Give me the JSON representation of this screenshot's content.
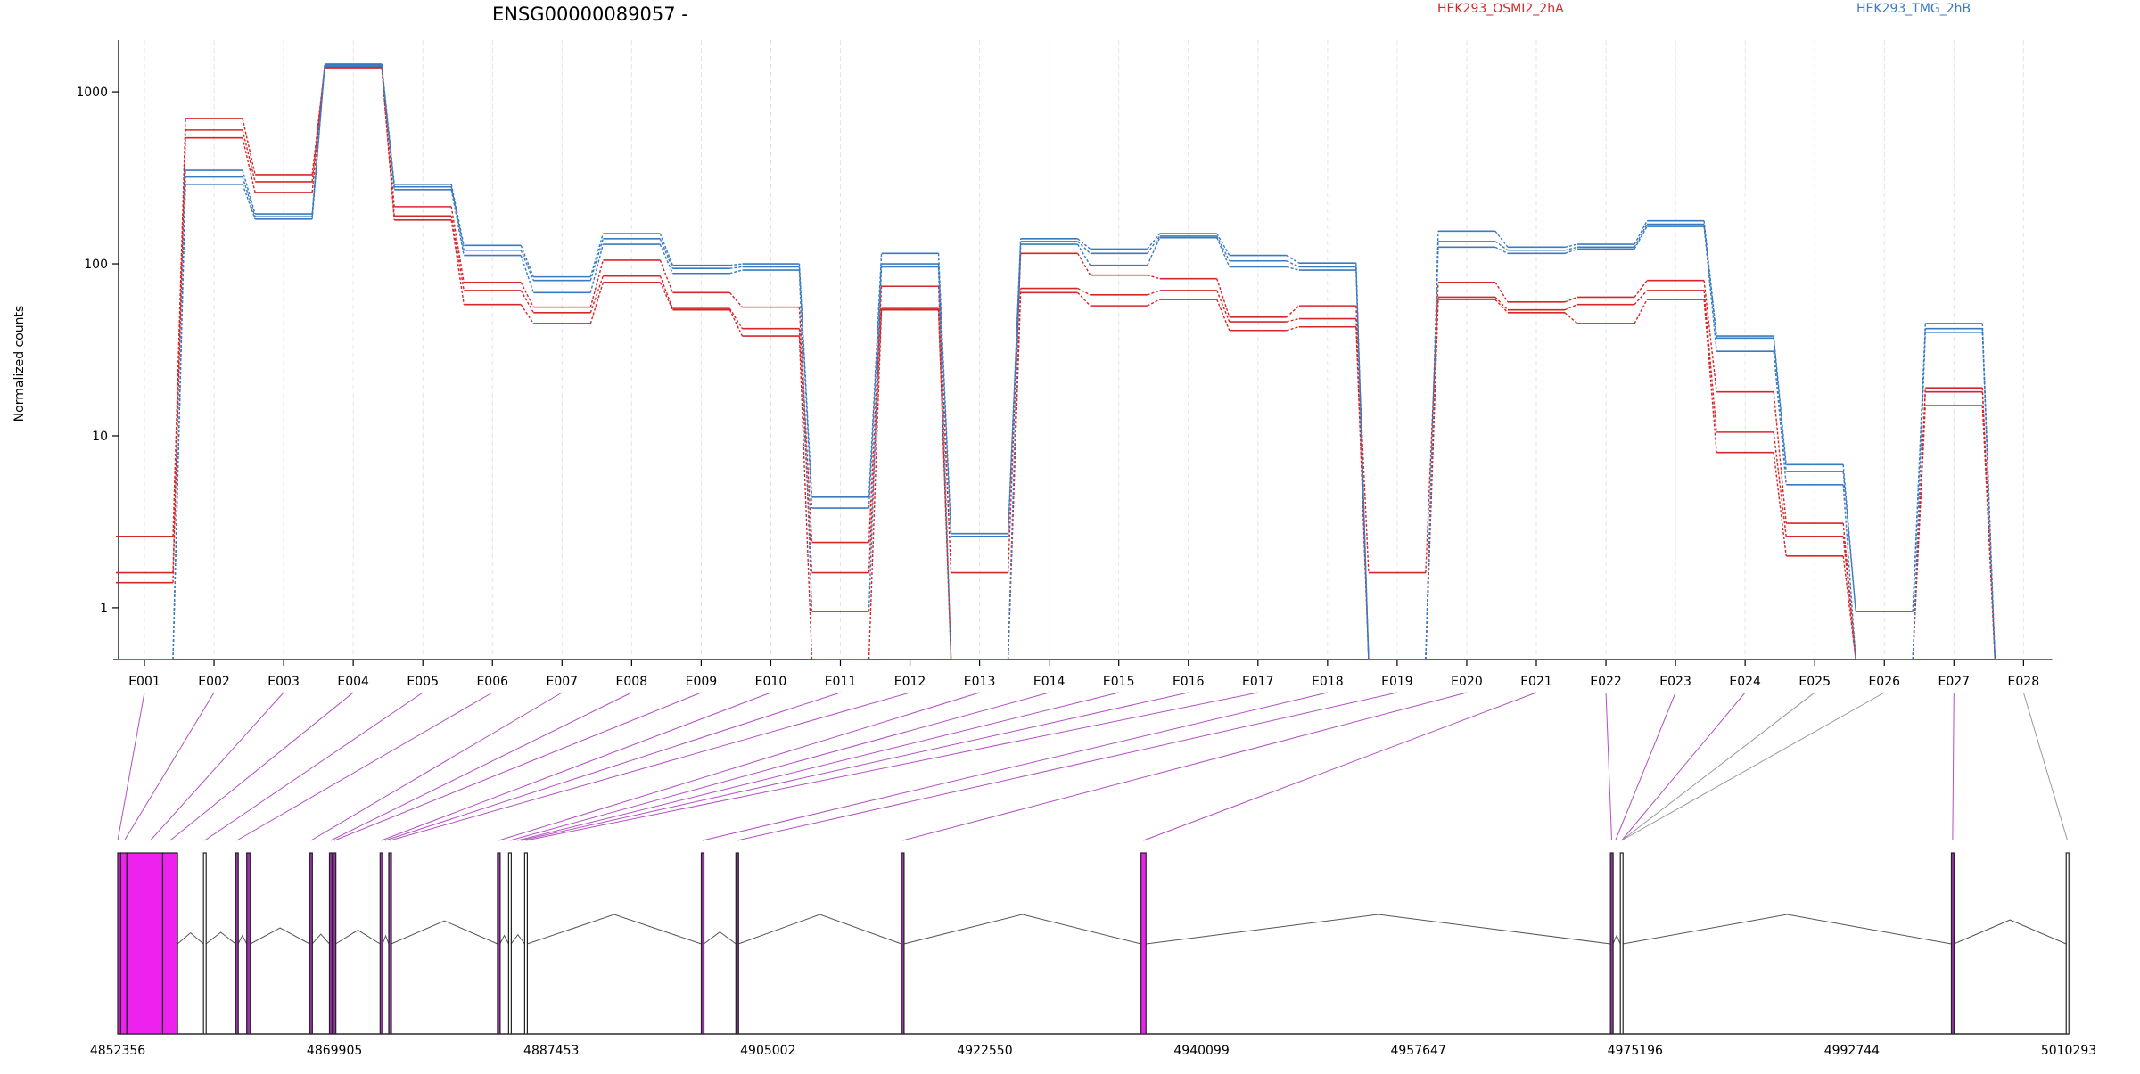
{
  "title": "ENSG00000089057 -",
  "legend": [
    {
      "label": "HEK293_OSMI2_2hA",
      "color": "#d62728"
    },
    {
      "label": "HEK293_TMG_2hB",
      "color": "#3a7bbf"
    }
  ],
  "chart_data": {
    "type": "line",
    "ylabel": "Normalized counts",
    "yscale": "log",
    "ylim": [
      0.5,
      2000
    ],
    "yticks": [
      {
        "value": 1,
        "label": "1"
      },
      {
        "value": 10,
        "label": "10"
      },
      {
        "value": 100,
        "label": "100"
      },
      {
        "value": 1000,
        "label": "1000"
      }
    ],
    "categories": [
      "E001",
      "E002",
      "E003",
      "E004",
      "E005",
      "E006",
      "E007",
      "E008",
      "E009",
      "E010",
      "E011",
      "E012",
      "E013",
      "E014",
      "E015",
      "E016",
      "E017",
      "E018",
      "E019",
      "E020",
      "E021",
      "E022",
      "E023",
      "E024",
      "E025",
      "E026",
      "E027",
      "E028"
    ],
    "series": [
      {
        "group": 0,
        "values": [
          2.6,
          700,
          330,
          1400,
          215,
          78,
          56,
          105,
          68,
          56,
          2.4,
          74,
          1.6,
          115,
          86,
          82,
          49,
          57,
          1.6,
          78,
          60,
          64,
          80,
          18,
          3.1,
          0.5,
          19,
          0.5
        ]
      },
      {
        "group": 0,
        "values": [
          1.6,
          600,
          300,
          1400,
          190,
          70,
          52,
          85,
          55,
          42,
          1.6,
          55,
          0.5,
          72,
          66,
          70,
          46,
          48,
          0.5,
          64,
          54,
          58,
          70,
          10.5,
          2.6,
          0.5,
          18,
          0.5
        ]
      },
      {
        "group": 0,
        "values": [
          1.4,
          540,
          260,
          1380,
          180,
          58,
          45,
          78,
          54,
          38,
          0.5,
          54,
          0.5,
          68,
          57,
          62,
          41,
          43,
          0.5,
          62,
          52,
          45,
          62,
          8.0,
          2.0,
          0.5,
          15,
          0.5
        ]
      },
      {
        "group": 1,
        "values": [
          0.5,
          350,
          195,
          1450,
          290,
          128,
          84,
          150,
          98,
          100,
          4.4,
          115,
          2.7,
          140,
          122,
          150,
          112,
          101,
          0.5,
          155,
          125,
          130,
          178,
          38,
          6.8,
          0.95,
          45,
          0.5
        ]
      },
      {
        "group": 1,
        "values": [
          0.5,
          320,
          188,
          1430,
          280,
          120,
          80,
          140,
          94,
          96,
          3.8,
          100,
          2.6,
          135,
          115,
          145,
          104,
          96,
          0.5,
          135,
          120,
          125,
          170,
          37,
          6.2,
          0.95,
          42,
          0.5
        ]
      },
      {
        "group": 1,
        "values": [
          0.5,
          290,
          182,
          1410,
          270,
          112,
          68,
          130,
          88,
          92,
          0.95,
          96,
          0.5,
          130,
          98,
          142,
          96,
          92,
          0.5,
          125,
          115,
          122,
          165,
          31,
          5.2,
          0.5,
          40,
          0.5
        ]
      }
    ]
  },
  "gene_model": {
    "coord_ticks": [
      "4852356",
      "4869905",
      "4887453",
      "4905002",
      "4922550",
      "4940099",
      "4957647",
      "4975196",
      "4992744",
      "5010293"
    ],
    "coord_min": 4852356,
    "coord_max": 5010293,
    "exons": [
      {
        "start": 4852356,
        "end": 4852600,
        "fill": "#ee22ee"
      },
      {
        "start": 4852600,
        "end": 4853100,
        "fill": "#ee22ee"
      },
      {
        "start": 4853100,
        "end": 4856000,
        "fill": "#ee22ee"
      },
      {
        "start": 4856000,
        "end": 4857200,
        "fill": "#ee22ee"
      },
      {
        "start": 4859300,
        "end": 4859500,
        "fill": "#ffffff"
      },
      {
        "start": 4861900,
        "end": 4862100,
        "fill": "#9933aa"
      },
      {
        "start": 4862800,
        "end": 4863100,
        "fill": "#9933aa"
      },
      {
        "start": 4867900,
        "end": 4868100,
        "fill": "#9933aa"
      },
      {
        "start": 4869500,
        "end": 4869700,
        "fill": "#9933aa"
      },
      {
        "start": 4869800,
        "end": 4870000,
        "fill": "#9933aa"
      },
      {
        "start": 4873600,
        "end": 4873800,
        "fill": "#9933aa"
      },
      {
        "start": 4874300,
        "end": 4874500,
        "fill": "#9933aa"
      },
      {
        "start": 4883100,
        "end": 4883300,
        "fill": "#9933aa"
      },
      {
        "start": 4884000,
        "end": 4884200,
        "fill": "#ffffff"
      },
      {
        "start": 4885300,
        "end": 4885500,
        "fill": "#ffffff"
      },
      {
        "start": 4899600,
        "end": 4899800,
        "fill": "#9933aa"
      },
      {
        "start": 4902400,
        "end": 4902600,
        "fill": "#9933aa"
      },
      {
        "start": 4915800,
        "end": 4916000,
        "fill": "#9933aa"
      },
      {
        "start": 4935200,
        "end": 4935600,
        "fill": "#ee22ee"
      },
      {
        "start": 4973200,
        "end": 4973400,
        "fill": "#9933aa"
      },
      {
        "start": 4974000,
        "end": 4974200,
        "fill": "#ffffff"
      },
      {
        "start": 5000800,
        "end": 5001000,
        "fill": "#9933aa"
      },
      {
        "start": 5010093,
        "end": 5010293,
        "fill": "#ffffff"
      }
    ],
    "connectors": [
      {
        "category": 0,
        "coord": 4852356
      },
      {
        "category": 1,
        "coord": 4852900
      },
      {
        "category": 2,
        "coord": 4855000
      },
      {
        "category": 3,
        "coord": 4856600
      },
      {
        "category": 4,
        "coord": 4859400
      },
      {
        "category": 5,
        "coord": 4862000
      },
      {
        "category": 6,
        "coord": 4868000
      },
      {
        "category": 7,
        "coord": 4869600
      },
      {
        "category": 8,
        "coord": 4869900
      },
      {
        "category": 9,
        "coord": 4873700
      },
      {
        "category": 10,
        "coord": 4874000
      },
      {
        "category": 11,
        "coord": 4874400
      },
      {
        "category": 12,
        "coord": 4883200
      },
      {
        "category": 13,
        "coord": 4884100
      },
      {
        "category": 14,
        "coord": 4884700
      },
      {
        "category": 15,
        "coord": 4885000
      },
      {
        "category": 16,
        "coord": 4885400
      },
      {
        "category": 17,
        "coord": 4899700
      },
      {
        "category": 18,
        "coord": 4902500
      },
      {
        "category": 19,
        "coord": 4915900
      },
      {
        "category": 20,
        "coord": 4935400
      },
      {
        "category": 21,
        "coord": 4973300
      },
      {
        "category": 22,
        "coord": 4973600
      },
      {
        "category": 23,
        "coord": 4974100
      },
      {
        "category": 24,
        "coord": 4974100
      },
      {
        "category": 25,
        "coord": 4974100
      },
      {
        "category": 26,
        "coord": 5000900
      },
      {
        "category": 27,
        "coord": 5010193
      }
    ]
  }
}
